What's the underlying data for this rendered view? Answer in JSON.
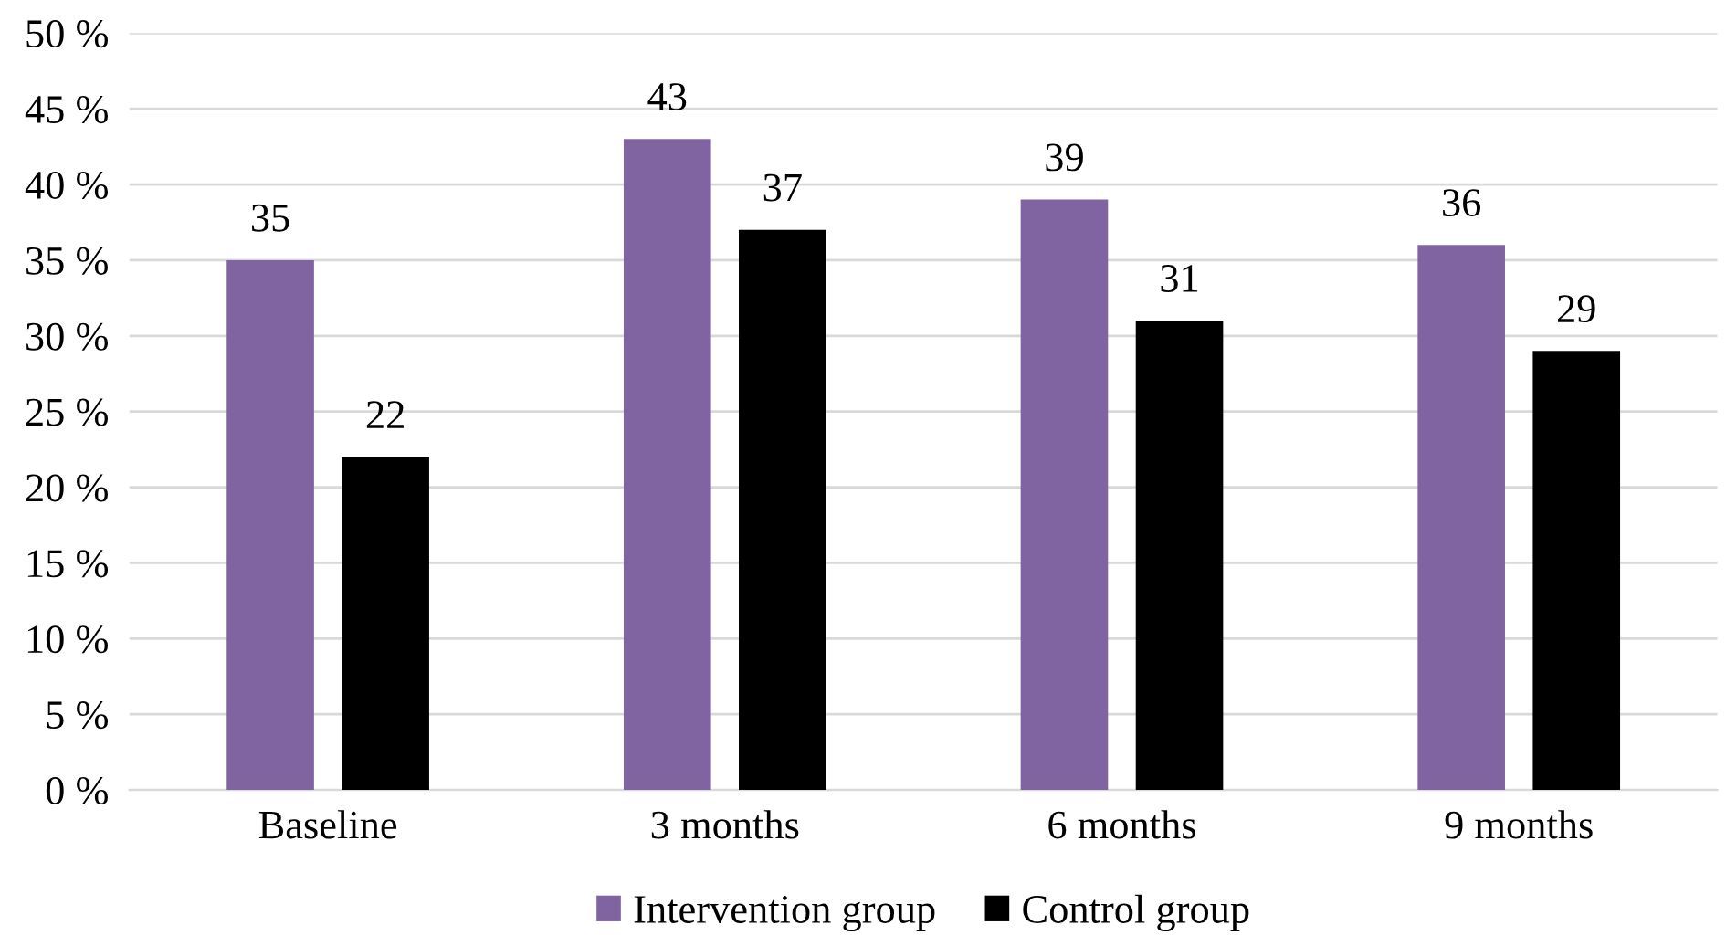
{
  "chart_data": {
    "type": "bar",
    "categories": [
      "Baseline",
      "3 months",
      "6 months",
      "9 months"
    ],
    "series": [
      {
        "name": "Intervention group",
        "color": "#8064a2",
        "values": [
          35,
          43,
          39,
          36
        ]
      },
      {
        "name": "Control group",
        "color": "#000000",
        "values": [
          22,
          37,
          31,
          29
        ]
      }
    ],
    "ylim": [
      0,
      50
    ],
    "yticks": [
      {
        "value": 0,
        "label": "0 %"
      },
      {
        "value": 5,
        "label": "5 %"
      },
      {
        "value": 10,
        "label": "10 %"
      },
      {
        "value": 15,
        "label": "15 %"
      },
      {
        "value": 20,
        "label": "20 %"
      },
      {
        "value": 25,
        "label": "25 %"
      },
      {
        "value": 30,
        "label": "30 %"
      },
      {
        "value": 35,
        "label": "35 %"
      },
      {
        "value": 40,
        "label": "40 %"
      },
      {
        "value": 45,
        "label": "45 %"
      },
      {
        "value": 50,
        "label": "50 %"
      }
    ],
    "grid": "y",
    "legend": "bottom",
    "data_labels": true
  }
}
